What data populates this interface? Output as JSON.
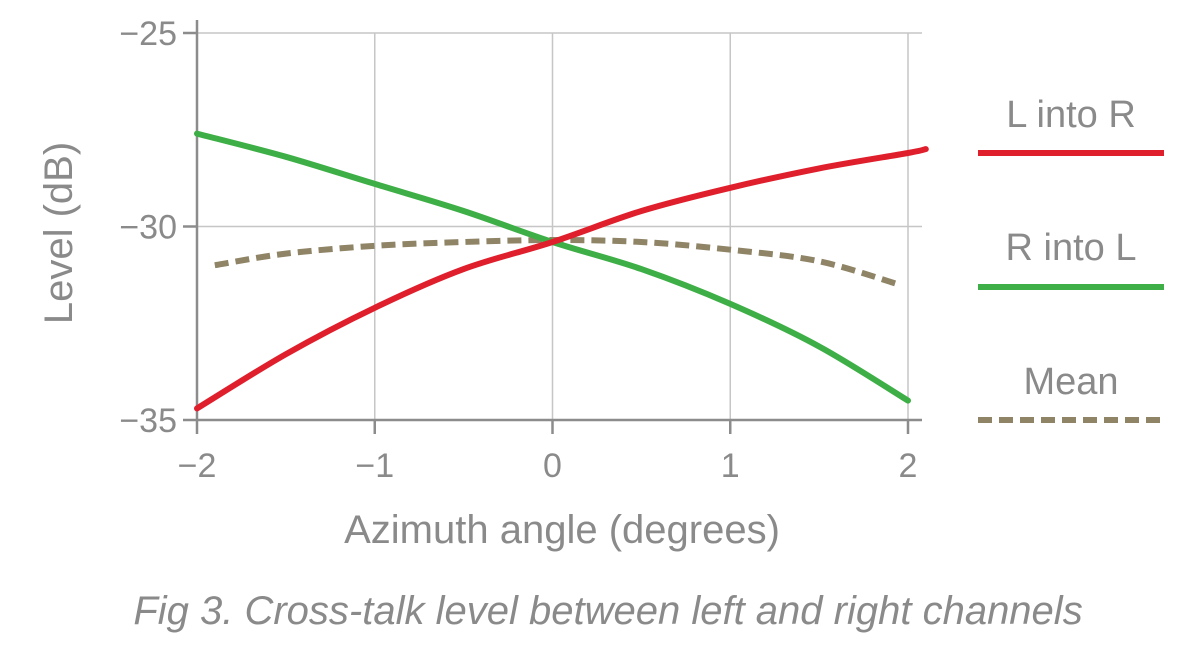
{
  "chart_data": {
    "type": "line",
    "title": "",
    "caption": "Fig 3. Cross-talk level between left and right channels",
    "xlabel": "Azimuth angle (degrees)",
    "ylabel": "Level (dB)",
    "xlim": [
      -2,
      2.1
    ],
    "ylim": [
      -35,
      -25
    ],
    "x_ticks": [
      -2,
      -1,
      0,
      1,
      2
    ],
    "x_tick_labels": [
      "−2",
      "−1",
      "0",
      "1",
      "2"
    ],
    "y_ticks": [
      -35,
      -30,
      -25
    ],
    "y_tick_labels": [
      "−35",
      "−30",
      "−25"
    ],
    "grid": true,
    "legend_position": "right",
    "series": [
      {
        "name": "L into R",
        "color": "#e01f2d",
        "style": "solid",
        "x": [
          -2.0,
          -1.5,
          -1.0,
          -0.5,
          0.0,
          0.5,
          1.0,
          1.5,
          2.0,
          2.1
        ],
        "y": [
          -34.7,
          -33.3,
          -32.1,
          -31.1,
          -30.4,
          -29.6,
          -29.0,
          -28.5,
          -28.1,
          -28.0
        ]
      },
      {
        "name": "R into L",
        "color": "#3eaf46",
        "style": "solid",
        "x": [
          -2.0,
          -1.5,
          -1.0,
          -0.5,
          0.0,
          0.5,
          1.0,
          1.5,
          2.0
        ],
        "y": [
          -27.6,
          -28.2,
          -28.9,
          -29.6,
          -30.4,
          -31.1,
          -32.0,
          -33.1,
          -34.5
        ]
      },
      {
        "name": "Mean",
        "color": "#8f8466",
        "style": "dashed",
        "x": [
          -1.9,
          -1.5,
          -1.0,
          -0.5,
          0.0,
          0.5,
          1.0,
          1.5,
          1.95
        ],
        "y": [
          -31.0,
          -30.7,
          -30.5,
          -30.4,
          -30.35,
          -30.4,
          -30.6,
          -30.9,
          -31.5
        ]
      }
    ]
  }
}
